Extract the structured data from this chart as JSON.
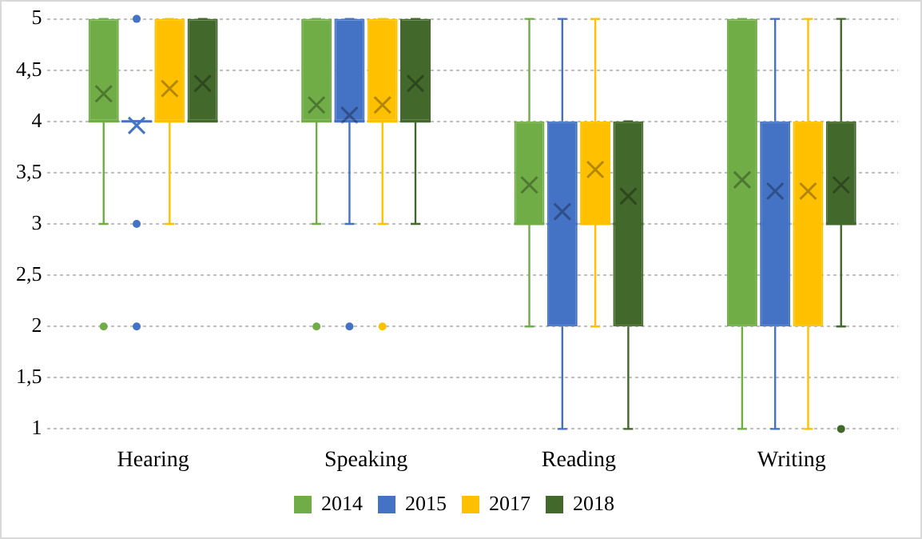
{
  "chart_data": {
    "type": "box",
    "categories": [
      "Hearing",
      "Speaking",
      "Reading",
      "Writing"
    ],
    "ylim": [
      1,
      5
    ],
    "yticks": [
      1,
      {
        "value": 1.5,
        "label": "1,5"
      },
      2,
      {
        "value": 2.5,
        "label": "2,5"
      },
      3,
      {
        "value": 3.5,
        "label": "3,5"
      },
      4,
      {
        "value": 4.5,
        "label": "4,5"
      },
      5
    ],
    "grid": "y",
    "legend": "bottom",
    "series": [
      {
        "name": "2014",
        "color": "#70ad47",
        "boxes": [
          {
            "low": 3,
            "q1": 4,
            "median": 4,
            "q3": 5,
            "high": 5,
            "mean": 4.27,
            "outliers": [
              2
            ]
          },
          {
            "low": 3,
            "q1": 4,
            "median": 4,
            "q3": 5,
            "high": 5,
            "mean": 4.16,
            "outliers": [
              2
            ]
          },
          {
            "low": 2,
            "q1": 3,
            "median": 3,
            "q3": 4,
            "high": 5,
            "mean": 3.38
          },
          {
            "low": 1,
            "q1": 2,
            "median": 3,
            "q3": 5,
            "high": 5,
            "mean": 3.43
          }
        ]
      },
      {
        "name": "2015",
        "color": "#4472c4",
        "boxes": [
          {
            "low": 4,
            "q1": 4,
            "median": 4,
            "q3": 4,
            "high": 4,
            "mean": 3.96,
            "outliers": [
              5,
              3,
              2
            ]
          },
          {
            "low": 3,
            "q1": 4,
            "median": 4,
            "q3": 5,
            "high": 5,
            "mean": 4.06,
            "outliers": [
              2
            ]
          },
          {
            "low": 1,
            "q1": 2,
            "median": 3,
            "q3": 4,
            "high": 5,
            "mean": 3.12
          },
          {
            "low": 1,
            "q1": 2,
            "median": 3,
            "q3": 4,
            "high": 5,
            "mean": 3.32
          }
        ]
      },
      {
        "name": "2017",
        "color": "#ffc000",
        "boxes": [
          {
            "low": 3,
            "q1": 4,
            "median": 4,
            "q3": 5,
            "high": 5,
            "mean": 4.32
          },
          {
            "low": 3,
            "q1": 4,
            "median": 4,
            "q3": 5,
            "high": 5,
            "mean": 4.16,
            "outliers": [
              2
            ]
          },
          {
            "low": 2,
            "q1": 3,
            "median": 3,
            "q3": 4,
            "high": 5,
            "mean": 3.53
          },
          {
            "low": 1,
            "q1": 2,
            "median": 3,
            "q3": 4,
            "high": 5,
            "mean": 3.32
          }
        ]
      },
      {
        "name": "2018",
        "color": "#43682b",
        "boxes": [
          {
            "low": 4,
            "q1": 4,
            "median": 4,
            "q3": 5,
            "high": 5,
            "mean": 4.37
          },
          {
            "low": 3,
            "q1": 4,
            "median": 4,
            "q3": 5,
            "high": 5,
            "mean": 4.37
          },
          {
            "low": 1,
            "q1": 2,
            "median": 3,
            "q3": 4,
            "high": 4,
            "mean": 3.27
          },
          {
            "low": 2,
            "q1": 3,
            "median": 3,
            "q3": 4,
            "high": 5,
            "mean": 3.38,
            "outliers": [
              1
            ]
          }
        ]
      }
    ]
  }
}
